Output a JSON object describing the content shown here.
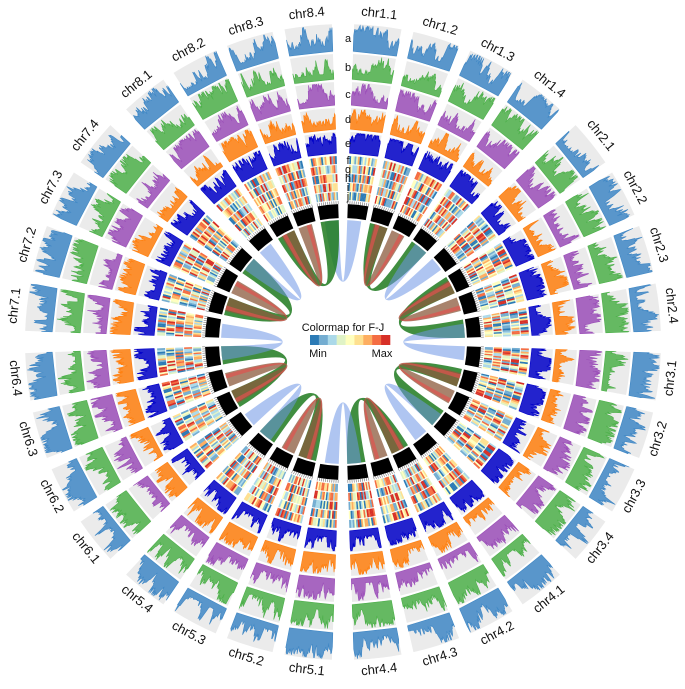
{
  "chromosomes": [
    {
      "id": "chr1",
      "subs": [
        "chr1.1",
        "chr1.2",
        "chr1.3",
        "chr1.4"
      ]
    },
    {
      "id": "chr2",
      "subs": [
        "chr2.1",
        "chr2.2",
        "chr2.3",
        "chr2.4"
      ]
    },
    {
      "id": "chr3",
      "subs": [
        "chr3.1",
        "chr3.2",
        "chr3.3",
        "chr3.4"
      ]
    },
    {
      "id": "chr4",
      "subs": [
        "chr4.1",
        "chr4.2",
        "chr4.3",
        "chr4.4"
      ]
    },
    {
      "id": "chr5",
      "subs": [
        "chr5.1",
        "chr5.2",
        "chr5.3",
        "chr5.4"
      ]
    },
    {
      "id": "chr6",
      "subs": [
        "chr6.1",
        "chr6.2",
        "chr6.3",
        "chr6.4"
      ]
    },
    {
      "id": "chr7",
      "subs": [
        "chr7.1",
        "chr7.2",
        "chr7.3",
        "chr7.4"
      ]
    },
    {
      "id": "chr8",
      "subs": [
        "chr8.1",
        "chr8.2",
        "chr8.3",
        "chr8.4"
      ]
    }
  ],
  "track_letters": [
    "a",
    "b",
    "c",
    "d",
    "e",
    "f",
    "g",
    "h",
    "i",
    "j"
  ],
  "line_track_colors": [
    "#3f87c5",
    "#4db04a",
    "#9b4fb8",
    "#ff7f0e",
    "#0000c8"
  ],
  "heatmap_colors": [
    "#2c7bb6",
    "#74add1",
    "#abd9e9",
    "#e0f3c6",
    "#ffffbf",
    "#fee090",
    "#fdae61",
    "#f46d43",
    "#d73027"
  ],
  "link_colors": {
    "blue": "#6d96e6",
    "green": "#1f7a1f",
    "brown": "#8b5a3c",
    "red": "#e0524f"
  },
  "colormap": {
    "title": "Colormap for F-J",
    "min_label": "Min",
    "max_label": "Max"
  }
}
